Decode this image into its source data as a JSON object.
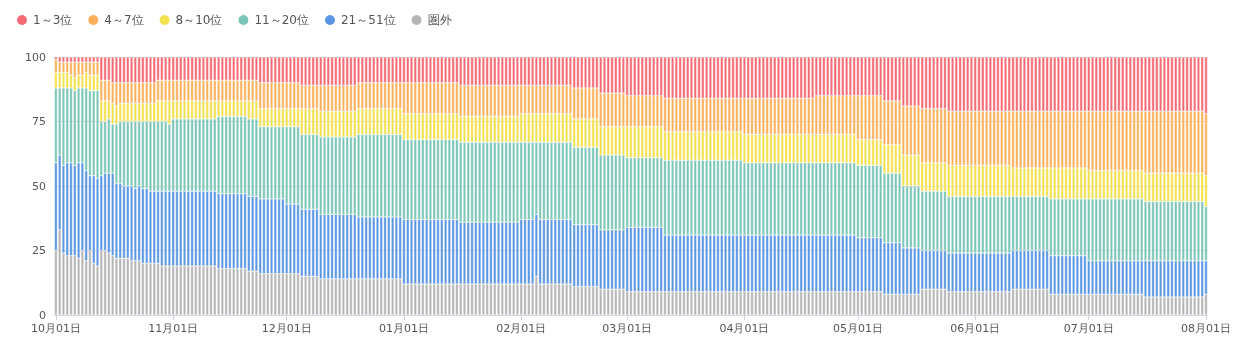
{
  "chart_data": {
    "type": "bar",
    "stacked": true,
    "legend": "top left",
    "grid": "y",
    "ylim": [
      0,
      100
    ],
    "yticks": [
      0,
      25,
      50,
      75,
      100
    ],
    "categories": [
      "10月01日",
      null,
      null,
      null,
      null,
      null,
      null,
      null,
      null,
      null,
      null,
      null,
      null,
      null,
      null,
      null,
      null,
      null,
      null,
      null,
      null,
      null,
      null,
      null,
      null,
      null,
      null,
      null,
      null,
      null,
      null,
      "11月01日",
      null,
      null,
      null,
      null,
      null,
      null,
      null,
      null,
      null,
      null,
      null,
      null,
      null,
      null,
      null,
      null,
      null,
      null,
      null,
      null,
      null,
      null,
      null,
      null,
      null,
      null,
      null,
      null,
      null,
      "12月01日",
      null,
      null,
      null,
      null,
      null,
      null,
      null,
      null,
      null,
      null,
      null,
      null,
      null,
      null,
      null,
      null,
      null,
      null,
      null,
      null,
      null,
      null,
      null,
      null,
      null,
      null,
      null,
      null,
      null,
      null,
      "01月01日",
      null,
      null,
      null,
      null,
      null,
      null,
      null,
      null,
      null,
      null,
      null,
      null,
      null,
      null,
      null,
      null,
      null,
      null,
      null,
      null,
      null,
      null,
      null,
      null,
      null,
      null,
      null,
      null,
      null,
      null,
      "02月01日",
      null,
      null,
      null,
      null,
      null,
      null,
      null,
      null,
      null,
      null,
      null,
      null,
      null,
      null,
      null,
      null,
      null,
      null,
      null,
      null,
      null,
      null,
      null,
      null,
      null,
      null,
      null,
      "03月01日",
      null,
      null,
      null,
      null,
      null,
      null,
      null,
      null,
      null,
      null,
      null,
      null,
      null,
      null,
      null,
      null,
      null,
      null,
      null,
      null,
      null,
      null,
      null,
      null,
      null,
      null,
      null,
      null,
      null,
      null,
      "04月01日",
      null,
      null,
      null,
      null,
      null,
      null,
      null,
      null,
      null,
      null,
      null,
      null,
      null,
      null,
      null,
      null,
      null,
      null,
      null,
      null,
      null,
      null,
      null,
      null,
      null,
      null,
      null,
      null,
      null,
      "05月01日",
      null,
      null,
      null,
      null,
      null,
      null,
      null,
      null,
      null,
      null,
      null,
      null,
      null,
      null,
      null,
      null,
      null,
      null,
      null,
      null,
      null,
      null,
      null,
      null,
      null,
      null,
      null,
      null,
      null,
      null,
      "06月01日",
      null,
      null,
      null,
      null,
      null,
      null,
      null,
      null,
      null,
      null,
      null,
      null,
      null,
      null,
      null,
      null,
      null,
      null,
      null,
      null,
      null,
      null,
      null,
      null,
      null,
      null,
      null,
      null,
      null,
      "07月01日",
      null,
      null,
      null,
      null,
      null,
      null,
      null,
      null,
      null,
      null,
      null,
      null,
      null,
      null,
      null,
      null,
      null,
      null,
      null,
      null,
      null,
      null,
      null,
      null,
      null,
      null,
      null,
      null,
      null,
      null,
      "08月01日"
    ],
    "series": [
      {
        "name": "圏外",
        "color": "#b5b5b5",
        "values": [
          25,
          33,
          24,
          23,
          23,
          23,
          22,
          25,
          21,
          25,
          20,
          19,
          25,
          25,
          24,
          23,
          22,
          22,
          22,
          22,
          21,
          21,
          21,
          20,
          20,
          20,
          20,
          20,
          19,
          19,
          19,
          19,
          19,
          19,
          19,
          19,
          19,
          19,
          19,
          19,
          19,
          19,
          19,
          18,
          18,
          18,
          18,
          18,
          18,
          18,
          18,
          17,
          17,
          17,
          16,
          16,
          16,
          16,
          16,
          16,
          16,
          16,
          16,
          16,
          16,
          15,
          15,
          15,
          15,
          15,
          14,
          14,
          14,
          14,
          14,
          14,
          14,
          14,
          14,
          14,
          14,
          14,
          14,
          14,
          14,
          14,
          14,
          14,
          14,
          14,
          14,
          14,
          12,
          12,
          12,
          12,
          12,
          12,
          12,
          12,
          12,
          12,
          12,
          12,
          12,
          12,
          12,
          12,
          12,
          12,
          12,
          12,
          12,
          12,
          12,
          12,
          12,
          12,
          12,
          12,
          12,
          12,
          12,
          12,
          12,
          12,
          12,
          15,
          12,
          12,
          12,
          12,
          12,
          12,
          12,
          12,
          12,
          11,
          11,
          11,
          11,
          11,
          11,
          11,
          10,
          10,
          10,
          10,
          10,
          10,
          10,
          9,
          9,
          9,
          9,
          9,
          9,
          9,
          9,
          9,
          9,
          9,
          9,
          9,
          9,
          9,
          9,
          9,
          9,
          9,
          9,
          9,
          9,
          9,
          9,
          9,
          9,
          9,
          9,
          9,
          9,
          9,
          9,
          9,
          9,
          9,
          9,
          9,
          9,
          9,
          9,
          9,
          9,
          9,
          9,
          9,
          9,
          9,
          9,
          9,
          9,
          9,
          9,
          9,
          9,
          9,
          9,
          9,
          9,
          9,
          9,
          9,
          9,
          9,
          9,
          9,
          9,
          9,
          9,
          8,
          8,
          8,
          8,
          8,
          8,
          8,
          8,
          8,
          8,
          10,
          10,
          10,
          10,
          10,
          10,
          10,
          9,
          9,
          9,
          9,
          9,
          9,
          9,
          9,
          9,
          9,
          9,
          9,
          9,
          9,
          9,
          9,
          9,
          10,
          10,
          10,
          10,
          10,
          10,
          10,
          10,
          10,
          10,
          8,
          8,
          8,
          8,
          8,
          8,
          8,
          8,
          8,
          8,
          8,
          8,
          8,
          8,
          8,
          8,
          8,
          8,
          8,
          8,
          8,
          8,
          8,
          8,
          8,
          7,
          7,
          7,
          7,
          7,
          7,
          7,
          7,
          7,
          7,
          7,
          7,
          7,
          7,
          7,
          7,
          8
        ]
      },
      {
        "name": "21～51位",
        "color": "#5a96e3",
        "values": [
          34,
          29,
          34,
          36,
          36,
          35,
          37,
          34,
          35,
          29,
          34,
          34,
          29,
          30,
          31,
          32,
          29,
          29,
          28,
          28,
          29,
          28,
          29,
          29,
          29,
          28,
          28,
          28,
          29,
          29,
          29,
          29,
          29,
          29,
          29,
          29,
          29,
          29,
          29,
          29,
          29,
          29,
          29,
          29,
          29,
          29,
          29,
          29,
          29,
          29,
          29,
          29,
          29,
          29,
          29,
          29,
          29,
          29,
          29,
          29,
          29,
          27,
          27,
          27,
          27,
          26,
          26,
          26,
          26,
          26,
          25,
          25,
          25,
          25,
          25,
          25,
          25,
          25,
          25,
          25,
          24,
          24,
          24,
          24,
          24,
          24,
          24,
          24,
          24,
          24,
          24,
          24,
          25,
          25,
          25,
          25,
          25,
          25,
          25,
          25,
          25,
          25,
          25,
          25,
          25,
          25,
          25,
          24,
          24,
          24,
          24,
          24,
          24,
          24,
          24,
          24,
          24,
          24,
          24,
          24,
          24,
          24,
          24,
          25,
          25,
          25,
          25,
          24,
          25,
          25,
          25,
          25,
          25,
          25,
          25,
          25,
          25,
          24,
          24,
          24,
          24,
          24,
          24,
          24,
          23,
          23,
          23,
          23,
          23,
          23,
          23,
          25,
          25,
          25,
          25,
          25,
          25,
          25,
          25,
          25,
          25,
          22,
          22,
          22,
          22,
          22,
          22,
          22,
          22,
          22,
          22,
          22,
          22,
          22,
          22,
          22,
          22,
          22,
          22,
          22,
          22,
          22,
          22,
          22,
          22,
          22,
          22,
          22,
          22,
          22,
          22,
          22,
          22,
          22,
          22,
          22,
          22,
          22,
          22,
          22,
          22,
          22,
          22,
          22,
          22,
          22,
          22,
          22,
          22,
          22,
          22,
          22,
          21,
          21,
          21,
          21,
          21,
          21,
          21,
          20,
          20,
          20,
          20,
          20,
          18,
          18,
          18,
          18,
          18,
          15,
          15,
          15,
          15,
          15,
          15,
          15,
          15,
          15,
          15,
          15,
          15,
          15,
          15,
          15,
          15,
          15,
          15,
          15,
          15,
          15,
          15,
          15,
          15,
          15,
          15,
          15,
          15,
          15,
          15,
          15,
          15,
          15,
          15,
          15,
          15,
          15,
          15,
          15,
          15,
          15,
          15,
          15,
          15,
          13,
          13,
          13,
          13,
          13,
          13,
          13,
          13,
          13,
          13,
          13,
          13,
          13,
          13,
          13,
          14,
          14,
          14,
          14,
          14,
          14,
          14,
          14,
          14,
          14,
          14,
          14,
          14,
          14,
          14,
          14,
          13
        ]
      },
      {
        "name": "11～20位",
        "color": "#7ac5b6",
        "values": [
          29,
          26,
          30,
          29,
          29,
          29,
          29,
          29,
          32,
          33,
          33,
          34,
          21,
          20,
          21,
          19,
          23,
          24,
          25,
          25,
          25,
          26,
          25,
          26,
          26,
          27,
          27,
          27,
          27,
          27,
          26,
          28,
          28,
          28,
          28,
          28,
          28,
          28,
          28,
          28,
          28,
          28,
          28,
          30,
          30,
          30,
          30,
          30,
          30,
          30,
          30,
          30,
          30,
          30,
          28,
          28,
          28,
          28,
          28,
          28,
          28,
          30,
          30,
          30,
          30,
          29,
          29,
          29,
          29,
          29,
          30,
          30,
          30,
          30,
          30,
          30,
          30,
          30,
          30,
          30,
          32,
          32,
          32,
          32,
          32,
          32,
          32,
          32,
          32,
          32,
          32,
          32,
          31,
          31,
          31,
          31,
          31,
          31,
          31,
          31,
          31,
          31,
          31,
          31,
          31,
          31,
          31,
          31,
          31,
          31,
          31,
          31,
          31,
          31,
          31,
          31,
          31,
          31,
          31,
          31,
          31,
          31,
          31,
          30,
          30,
          30,
          30,
          28,
          30,
          30,
          30,
          30,
          30,
          30,
          30,
          30,
          30,
          30,
          30,
          30,
          30,
          30,
          30,
          30,
          29,
          29,
          29,
          29,
          29,
          29,
          29,
          27,
          27,
          27,
          27,
          27,
          27,
          27,
          27,
          27,
          27,
          29,
          29,
          29,
          29,
          29,
          29,
          29,
          29,
          29,
          29,
          29,
          29,
          29,
          29,
          29,
          29,
          29,
          29,
          29,
          29,
          29,
          28,
          28,
          28,
          28,
          28,
          28,
          28,
          28,
          28,
          28,
          28,
          28,
          28,
          28,
          28,
          28,
          28,
          28,
          28,
          28,
          28,
          28,
          28,
          28,
          28,
          28,
          28,
          28,
          28,
          28,
          28,
          28,
          28,
          28,
          28,
          28,
          28,
          27,
          27,
          27,
          27,
          27,
          24,
          24,
          24,
          24,
          24,
          23,
          23,
          23,
          23,
          23,
          23,
          23,
          22,
          22,
          22,
          22,
          22,
          22,
          22,
          22,
          22,
          22,
          22,
          22,
          22,
          22,
          22,
          22,
          22,
          21,
          21,
          21,
          21,
          21,
          21,
          21,
          21,
          21,
          21,
          22,
          22,
          22,
          22,
          22,
          22,
          22,
          22,
          22,
          22,
          24,
          24,
          24,
          24,
          24,
          24,
          24,
          24,
          24,
          24,
          24,
          24,
          24,
          24,
          24,
          23,
          23,
          23,
          23,
          23,
          23,
          23,
          23,
          23,
          23,
          23,
          23,
          23,
          23,
          23,
          23,
          21
        ]
      },
      {
        "name": "8～10位",
        "color": "#f4e04d",
        "values": [
          6,
          6,
          6,
          6,
          5,
          5,
          5,
          5,
          6,
          6,
          6,
          6,
          8,
          8,
          7,
          8,
          7,
          7,
          7,
          7,
          7,
          7,
          7,
          7,
          7,
          7,
          7,
          8,
          8,
          8,
          9,
          7,
          7,
          7,
          7,
          7,
          7,
          7,
          7,
          7,
          7,
          7,
          7,
          6,
          6,
          6,
          6,
          6,
          6,
          6,
          6,
          7,
          7,
          7,
          7,
          7,
          7,
          7,
          7,
          7,
          7,
          7,
          7,
          7,
          7,
          10,
          10,
          10,
          10,
          10,
          10,
          10,
          10,
          10,
          10,
          10,
          10,
          10,
          10,
          10,
          10,
          10,
          10,
          10,
          10,
          10,
          10,
          10,
          10,
          10,
          10,
          10,
          10,
          10,
          10,
          10,
          10,
          10,
          10,
          10,
          10,
          10,
          10,
          10,
          10,
          10,
          10,
          10,
          10,
          10,
          10,
          10,
          10,
          10,
          10,
          10,
          10,
          10,
          10,
          10,
          10,
          10,
          10,
          11,
          11,
          11,
          11,
          11,
          11,
          11,
          11,
          11,
          11,
          11,
          11,
          11,
          11,
          11,
          11,
          11,
          11,
          11,
          11,
          11,
          11,
          11,
          11,
          11,
          11,
          11,
          11,
          12,
          12,
          12,
          12,
          12,
          12,
          12,
          12,
          12,
          12,
          11,
          11,
          11,
          11,
          11,
          11,
          11,
          11,
          11,
          11,
          11,
          11,
          11,
          11,
          11,
          11,
          11,
          11,
          11,
          11,
          11,
          11,
          11,
          11,
          11,
          11,
          11,
          11,
          11,
          11,
          11,
          11,
          11,
          11,
          11,
          11,
          11,
          11,
          11,
          11,
          11,
          11,
          11,
          11,
          11,
          11,
          11,
          11,
          11,
          11,
          11,
          10,
          10,
          10,
          10,
          10,
          10,
          10,
          11,
          11,
          11,
          11,
          11,
          12,
          12,
          12,
          12,
          12,
          11,
          11,
          11,
          11,
          11,
          11,
          11,
          12,
          12,
          12,
          12,
          12,
          12,
          12,
          12,
          12,
          12,
          12,
          12,
          12,
          12,
          12,
          12,
          12,
          11,
          11,
          11,
          11,
          11,
          11,
          11,
          11,
          11,
          11,
          12,
          12,
          12,
          12,
          12,
          12,
          12,
          12,
          12,
          12,
          11,
          11,
          11,
          11,
          11,
          11,
          11,
          11,
          11,
          11,
          11,
          11,
          11,
          11,
          11,
          11,
          11,
          11,
          11,
          11,
          11,
          11,
          11,
          11,
          11,
          11,
          11,
          11,
          11,
          11,
          11,
          12
        ]
      },
      {
        "name": "4～7位",
        "color": "#fbb05a",
        "values": [
          5,
          4,
          4,
          4,
          5,
          6,
          5,
          5,
          4,
          5,
          5,
          5,
          8,
          8,
          8,
          8,
          9,
          8,
          8,
          8,
          8,
          8,
          8,
          8,
          8,
          8,
          8,
          8,
          8,
          8,
          8,
          8,
          8,
          8,
          8,
          8,
          8,
          8,
          8,
          8,
          8,
          8,
          8,
          8,
          8,
          8,
          8,
          8,
          8,
          8,
          8,
          8,
          8,
          8,
          10,
          10,
          10,
          10,
          10,
          10,
          10,
          10,
          10,
          10,
          10,
          9,
          9,
          9,
          9,
          9,
          10,
          10,
          10,
          10,
          10,
          10,
          10,
          10,
          10,
          10,
          10,
          10,
          10,
          10,
          10,
          10,
          10,
          10,
          10,
          10,
          10,
          10,
          12,
          12,
          12,
          12,
          12,
          12,
          12,
          12,
          12,
          12,
          12,
          12,
          12,
          12,
          12,
          12,
          12,
          12,
          12,
          12,
          12,
          12,
          12,
          12,
          12,
          12,
          12,
          12,
          12,
          12,
          12,
          11,
          11,
          11,
          11,
          11,
          11,
          11,
          11,
          11,
          11,
          11,
          11,
          11,
          11,
          12,
          12,
          12,
          12,
          12,
          12,
          12,
          13,
          13,
          13,
          13,
          13,
          13,
          13,
          12,
          12,
          12,
          12,
          12,
          12,
          12,
          12,
          12,
          12,
          13,
          13,
          13,
          13,
          13,
          13,
          13,
          13,
          13,
          13,
          13,
          13,
          13,
          13,
          13,
          13,
          13,
          13,
          13,
          13,
          13,
          14,
          14,
          14,
          14,
          14,
          14,
          14,
          14,
          14,
          14,
          14,
          14,
          14,
          14,
          14,
          14,
          14,
          14,
          14,
          15,
          15,
          15,
          15,
          15,
          15,
          15,
          15,
          15,
          15,
          15,
          17,
          17,
          17,
          17,
          17,
          17,
          17,
          17,
          17,
          17,
          17,
          17,
          19,
          19,
          19,
          19,
          19,
          21,
          21,
          21,
          21,
          21,
          21,
          21,
          21,
          21,
          21,
          21,
          21,
          21,
          21,
          21,
          21,
          21,
          21,
          21,
          21,
          21,
          21,
          21,
          21,
          22,
          22,
          22,
          22,
          22,
          22,
          22,
          22,
          22,
          22,
          22,
          22,
          22,
          22,
          22,
          22,
          22,
          22,
          22,
          22,
          23,
          23,
          23,
          23,
          23,
          23,
          23,
          23,
          23,
          23,
          23,
          23,
          23,
          23,
          23,
          24,
          24,
          24,
          24,
          24,
          24,
          24,
          24,
          24,
          24,
          24,
          24,
          24,
          24,
          24,
          24,
          24
        ]
      },
      {
        "name": "1～3位",
        "color": "#f76a74",
        "values": [
          1,
          2,
          2,
          2,
          2,
          2,
          2,
          2,
          2,
          2,
          2,
          2,
          9,
          9,
          9,
          10,
          10,
          10,
          10,
          10,
          10,
          10,
          10,
          10,
          10,
          10,
          10,
          9,
          9,
          9,
          9,
          9,
          9,
          9,
          9,
          9,
          9,
          9,
          9,
          9,
          9,
          9,
          9,
          9,
          9,
          9,
          9,
          9,
          9,
          9,
          9,
          9,
          9,
          9,
          10,
          10,
          10,
          10,
          10,
          10,
          10,
          10,
          10,
          10,
          10,
          11,
          11,
          11,
          11,
          11,
          11,
          11,
          11,
          11,
          11,
          11,
          11,
          11,
          11,
          11,
          10,
          10,
          10,
          10,
          10,
          10,
          10,
          10,
          10,
          10,
          10,
          10,
          10,
          10,
          10,
          10,
          10,
          10,
          10,
          10,
          10,
          10,
          10,
          10,
          10,
          10,
          10,
          11,
          11,
          11,
          11,
          11,
          11,
          11,
          11,
          11,
          11,
          11,
          11,
          11,
          11,
          11,
          11,
          11,
          11,
          11,
          11,
          11,
          11,
          11,
          11,
          11,
          11,
          11,
          11,
          11,
          11,
          12,
          12,
          12,
          12,
          12,
          12,
          12,
          14,
          14,
          14,
          14,
          14,
          14,
          14,
          15,
          15,
          15,
          15,
          15,
          15,
          15,
          15,
          15,
          15,
          16,
          16,
          16,
          16,
          16,
          16,
          16,
          16,
          16,
          16,
          16,
          16,
          16,
          16,
          16,
          16,
          16,
          16,
          16,
          16,
          16,
          16,
          16,
          16,
          16,
          16,
          16,
          16,
          16,
          16,
          16,
          16,
          16,
          16,
          16,
          16,
          16,
          16,
          16,
          16,
          15,
          15,
          15,
          15,
          15,
          15,
          15,
          15,
          15,
          15,
          15,
          15,
          15,
          15,
          15,
          15,
          15,
          15,
          17,
          17,
          17,
          17,
          17,
          19,
          19,
          19,
          19,
          19,
          20,
          20,
          20,
          20,
          20,
          20,
          20,
          21,
          21,
          21,
          21,
          21,
          21,
          21,
          21,
          21,
          21,
          21,
          21,
          21,
          21,
          21,
          21,
          21,
          21,
          21,
          21,
          21,
          21,
          21,
          21,
          21,
          21,
          21,
          21,
          21,
          21,
          21,
          21,
          21,
          21,
          21,
          21,
          21,
          21,
          21,
          21,
          21,
          21,
          21,
          21,
          21,
          21,
          21,
          21,
          21,
          21,
          21,
          21,
          21,
          21,
          21,
          21,
          21,
          21,
          21,
          21,
          21,
          21,
          21,
          21,
          21,
          21,
          21,
          21,
          22
        ]
      }
    ]
  }
}
